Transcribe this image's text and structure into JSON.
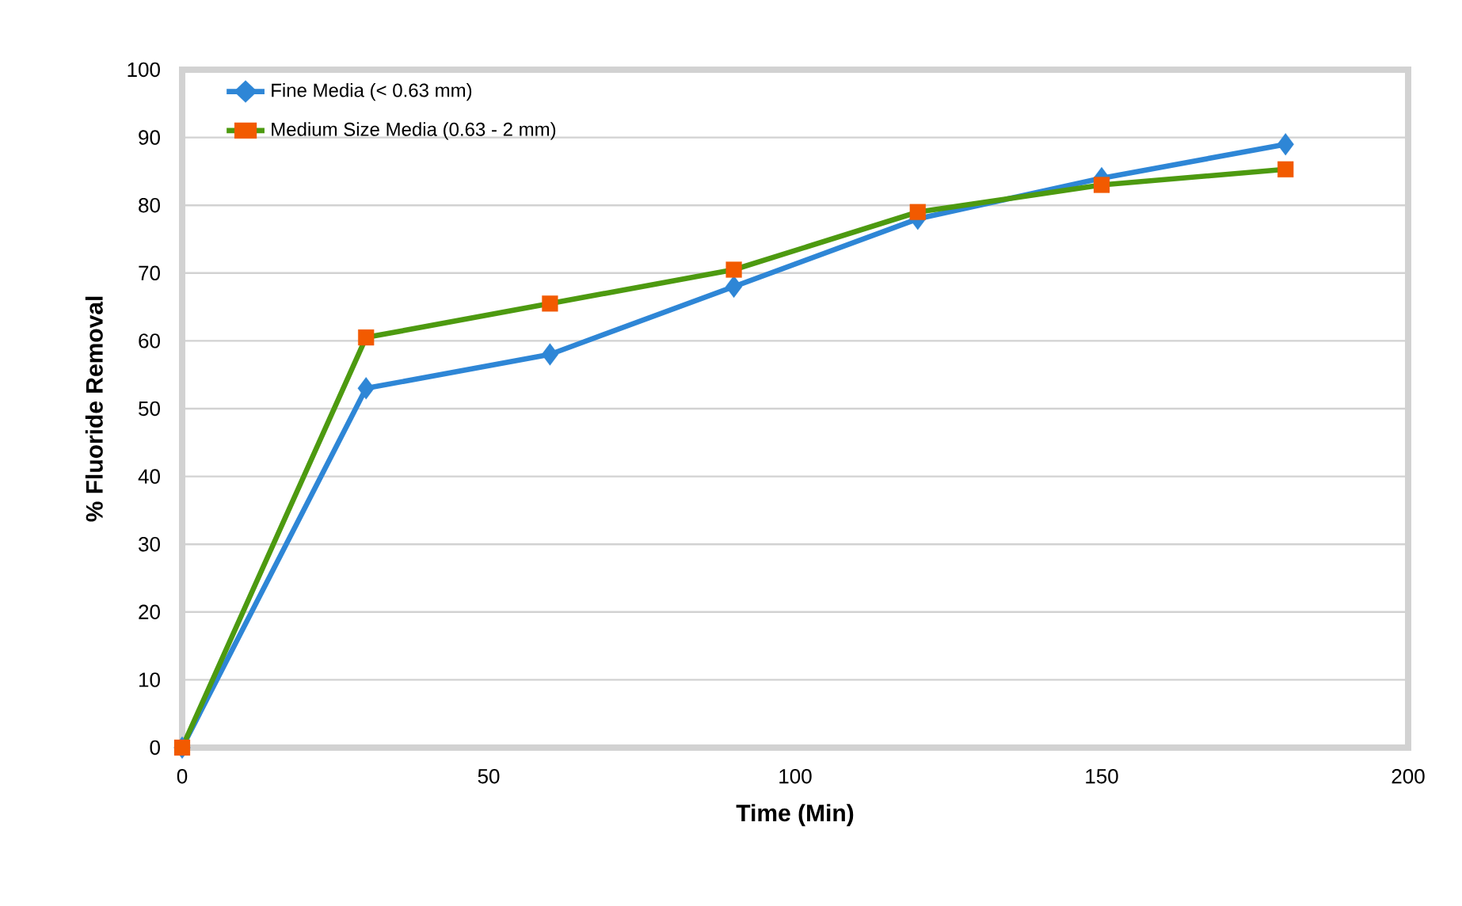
{
  "chart_data": {
    "type": "line",
    "xlabel": "Time (Min)",
    "ylabel": "% Fluoride Removal",
    "x": [
      0,
      30,
      60,
      90,
      120,
      150,
      180
    ],
    "series": [
      {
        "name": "Fine Media (< 0.63 mm)",
        "color": "#2e86d6",
        "marker": "diamond",
        "values": [
          0,
          53,
          58,
          68,
          78,
          84,
          89
        ]
      },
      {
        "name": "Medium Size Media (0.63 - 2 mm)",
        "color": "#4d9a10",
        "colors": [
          "#f25a00",
          "#f25a00",
          "#f25a00",
          "#f25a00",
          "#f25a00",
          "#f25a00",
          "#f25a00"
        ],
        "marker": "square",
        "values": [
          0,
          60.5,
          65.5,
          70.5,
          79,
          83,
          85.3
        ]
      }
    ],
    "xlim": [
      0,
      200
    ],
    "xticks": [
      0,
      50,
      100,
      150,
      200
    ],
    "ylim": [
      0,
      100
    ],
    "yticks": [
      0,
      10,
      20,
      30,
      40,
      50,
      60,
      70,
      80,
      90,
      100
    ],
    "grid": "y",
    "legend": "top left",
    "line_style": "solid"
  }
}
